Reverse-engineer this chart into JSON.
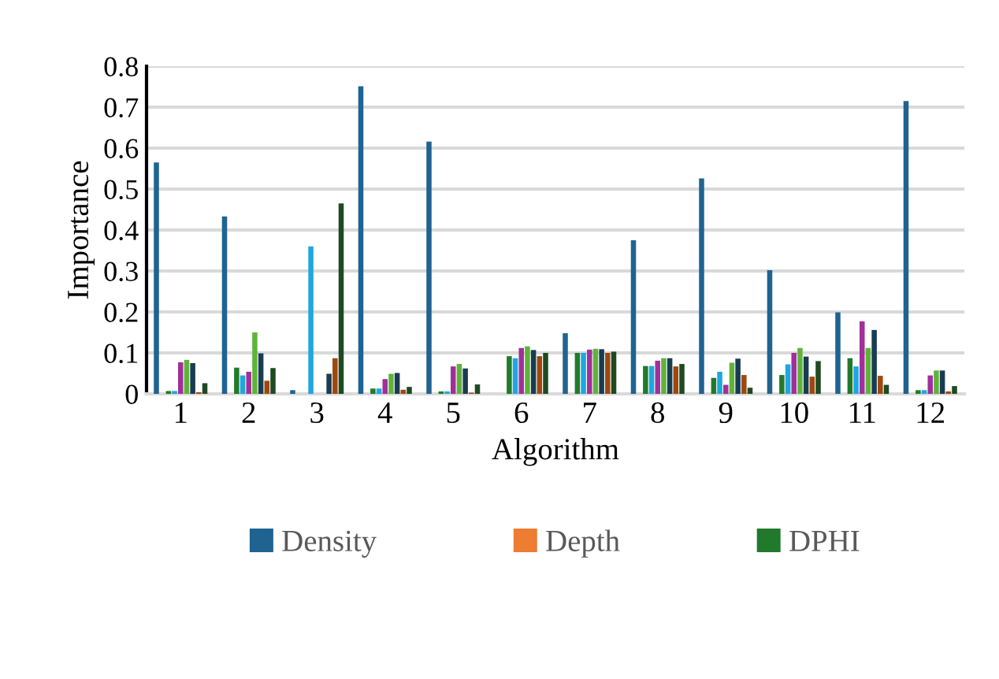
{
  "chart_data": {
    "type": "bar",
    "xlabel": "Algorithm",
    "ylabel": "Importance",
    "categories": [
      "1",
      "2",
      "3",
      "4",
      "5",
      "6",
      "7",
      "8",
      "9",
      "10",
      "11",
      "12"
    ],
    "series": [
      {
        "name": "Density",
        "color": "#1f6391",
        "values": [
          0.565,
          0.433,
          0.009,
          0.751,
          0.616,
          0,
          0.148,
          0.375,
          0.526,
          0.302,
          0.199,
          0.715
        ]
      },
      {
        "name": "Depth",
        "color": "#ed7d31",
        "values": [
          0,
          0,
          0,
          0,
          0,
          0,
          0,
          0,
          0,
          0,
          0,
          0
        ]
      },
      {
        "name": "DPHI",
        "color": "#217a2b",
        "values": [
          0.007,
          0.064,
          0,
          0.013,
          0.006,
          0.092,
          0.1,
          0.068,
          0.039,
          0.046,
          0.087,
          0.009
        ]
      },
      {
        "color": "#1ea7e0",
        "values": [
          0.007,
          0.045,
          0.36,
          0.013,
          0.006,
          0.087,
          0.1,
          0.068,
          0.054,
          0.072,
          0.067,
          0.009
        ]
      },
      {
        "color": "#a0309a",
        "values": [
          0.077,
          0.054,
          0,
          0.036,
          0.067,
          0.112,
          0.108,
          0.081,
          0.022,
          0.1,
          0.177,
          0.045
        ]
      },
      {
        "color": "#5fb33a",
        "values": [
          0.083,
          0.15,
          0,
          0.049,
          0.073,
          0.116,
          0.11,
          0.087,
          0.076,
          0.112,
          0.112,
          0.057
        ]
      },
      {
        "color": "#183c52",
        "values": [
          0.075,
          0.099,
          0.049,
          0.051,
          0.062,
          0.107,
          0.109,
          0.087,
          0.086,
          0.091,
          0.156,
          0.057
        ]
      },
      {
        "color": "#9e480e",
        "values": [
          0.004,
          0.032,
          0.087,
          0.01,
          0.003,
          0.092,
          0.1,
          0.067,
          0.046,
          0.042,
          0.044,
          0.006
        ]
      },
      {
        "color": "#1e4a22",
        "values": [
          0.026,
          0.063,
          0.465,
          0.017,
          0.023,
          0.1,
          0.103,
          0.073,
          0.015,
          0.08,
          0.022,
          0.019
        ]
      }
    ],
    "ylim": [
      0,
      0.8
    ],
    "yticks": [
      0,
      0.1,
      0.2,
      0.3,
      0.4,
      0.5,
      0.6,
      0.7,
      0.8
    ],
    "grid": "y",
    "legend": "bottom"
  }
}
